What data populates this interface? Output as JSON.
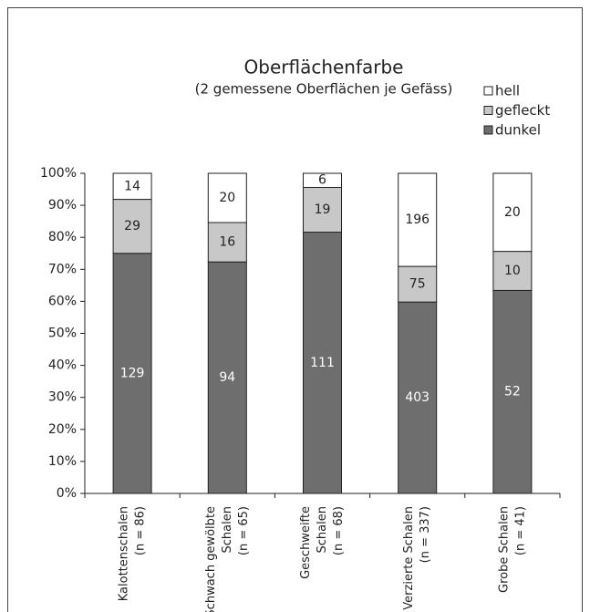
{
  "chart_data": {
    "type": "stacked_percent_bar",
    "title": "Oberflächenfarbe",
    "subtitle": "(2 gemessene Oberflächen je Gefäss)",
    "categories": [
      [
        "Kalottenschalen",
        "(n = 86)"
      ],
      [
        "Schwach gewölbte",
        "Schalen",
        "(n = 65)"
      ],
      [
        "Geschweifte",
        "Schalen",
        "(n = 68)"
      ],
      [
        "Verzierte Schalen",
        "(n = 337)"
      ],
      [
        "Grobe Schalen",
        "(n = 41)"
      ]
    ],
    "series": [
      {
        "name": "dunkel",
        "color": "#6e6e6e",
        "label_color": "#ffffff",
        "values": [
          129,
          94,
          111,
          403,
          52
        ]
      },
      {
        "name": "gefleckt",
        "color": "#c8c8c8",
        "label_color": "#222222",
        "values": [
          29,
          16,
          19,
          75,
          10
        ]
      },
      {
        "name": "hell",
        "color": "#ffffff",
        "label_color": "#222222",
        "values": [
          14,
          20,
          6,
          196,
          20
        ]
      }
    ],
    "ylim": [
      0,
      100
    ],
    "yticks": [
      {
        "value": 0,
        "label": "0%"
      },
      {
        "value": 10,
        "label": "10%"
      },
      {
        "value": 20,
        "label": "20%"
      },
      {
        "value": 30,
        "label": "30%"
      },
      {
        "value": 40,
        "label": "40%"
      },
      {
        "value": 50,
        "label": "50%"
      },
      {
        "value": 60,
        "label": "60%"
      },
      {
        "value": 70,
        "label": "70%"
      },
      {
        "value": 80,
        "label": "80%"
      },
      {
        "value": 90,
        "label": "90%"
      },
      {
        "value": 100,
        "label": "100%"
      }
    ],
    "legend": "top-right"
  }
}
